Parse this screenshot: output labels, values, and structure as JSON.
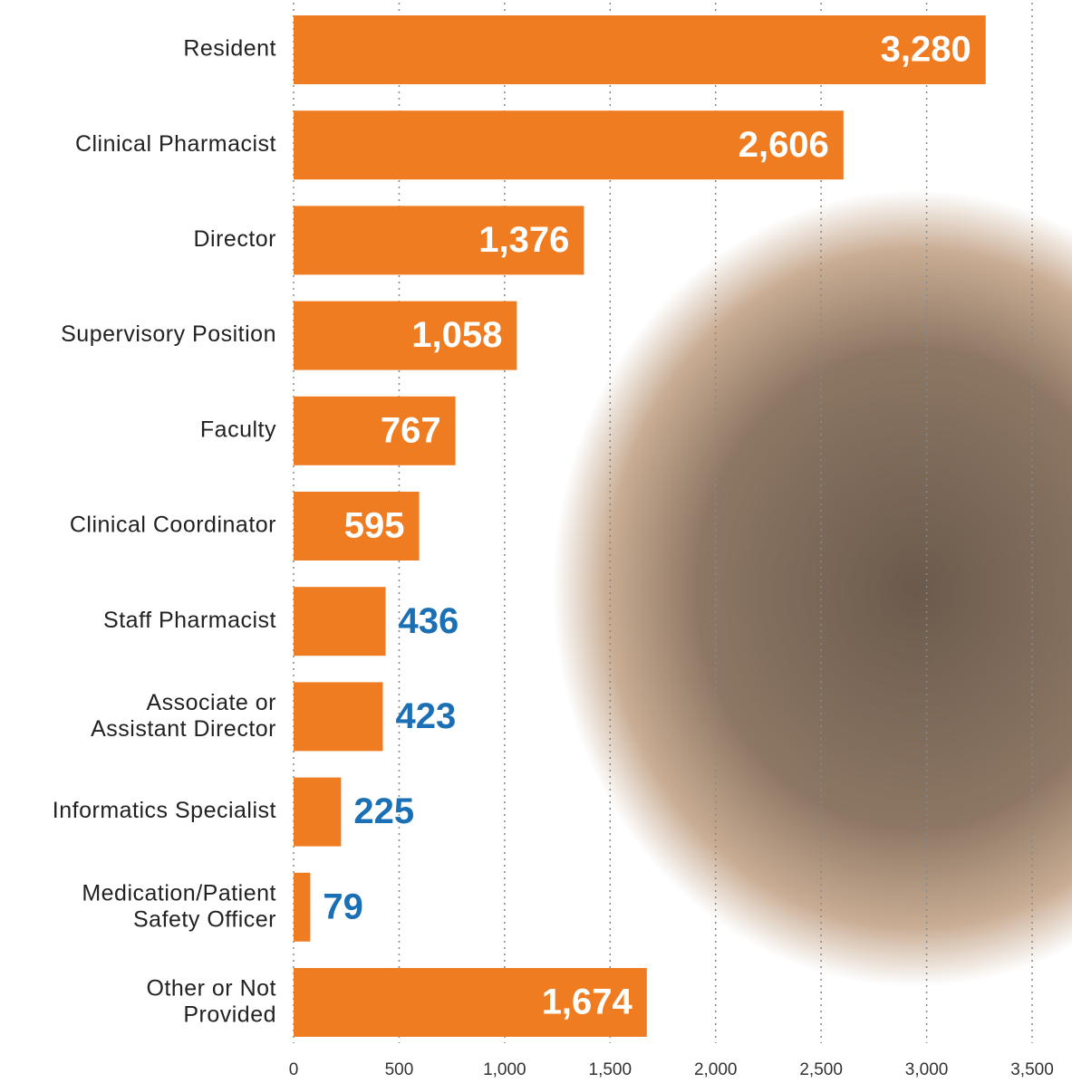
{
  "chart_data": {
    "type": "barh",
    "color": "#f07c22",
    "categories": [
      "Resident",
      "Clinical Pharmacist",
      "Director",
      "Supervisory Position",
      "Faculty",
      "Clinical Coordinator",
      "Staff Pharmacist",
      "Associate or\nAssistant Director",
      "Informatics Specialist",
      "Medication/Patient\nSafety Officer",
      "Other or Not\nProvided"
    ],
    "values": [
      3280,
      2606,
      1376,
      1058,
      767,
      595,
      436,
      423,
      225,
      79,
      1674
    ],
    "value_labels": [
      "3,280",
      "2,606",
      "1,376",
      "1,058",
      "767",
      "595",
      "436",
      "423",
      "225",
      "79",
      "1,674"
    ],
    "xlim": [
      0,
      3500
    ],
    "xticks": [
      0,
      500,
      {
        "value": 1000,
        "label": "1,000"
      },
      {
        "value": 1500,
        "label": "1,500"
      },
      {
        "value": 2000,
        "label": "2,000"
      },
      {
        "value": 2500,
        "label": "2,500"
      },
      {
        "value": 3000,
        "label": "3,000"
      },
      {
        "value": 3500,
        "label": "3,500"
      }
    ],
    "grid": true
  }
}
